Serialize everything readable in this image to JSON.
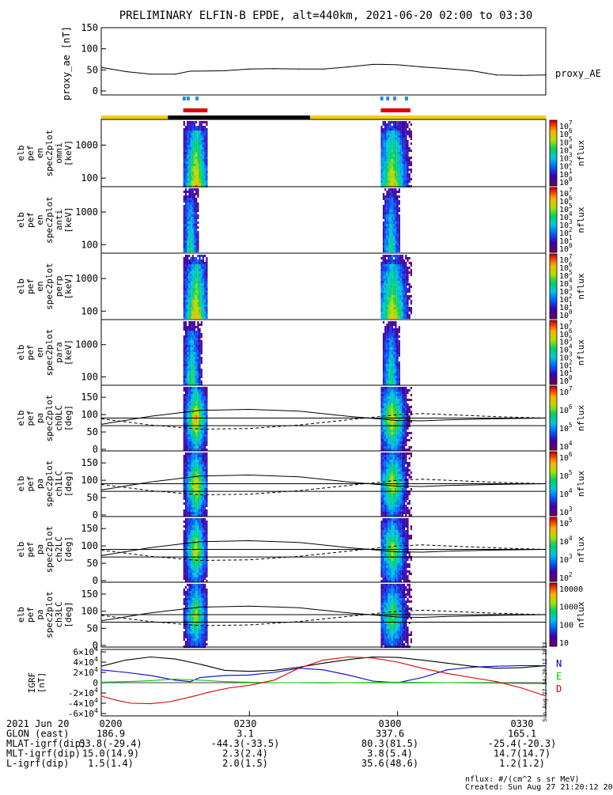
{
  "title": "PRELIMINARY ELFIN-B EPDE, alt=440km, 2021-06-20 02:00 to 03:30",
  "colors": {
    "yellow": "#f5d00a",
    "black": "#000000",
    "red": "#e00000",
    "blue": "#2a8cf0",
    "green": "#00b000",
    "compN": "#0000cc",
    "compE": "#00cc00",
    "compD": "#dd0000"
  },
  "bars": {
    "note": "orbit/science-zone bars above the spectrograms",
    "time_segments": [
      {
        "start_min": 0,
        "end_min": 13.5,
        "color": "yellow"
      },
      {
        "start_min": 13.5,
        "end_min": 42.3,
        "color": "black"
      },
      {
        "start_min": 42.3,
        "end_min": 90,
        "color": "yellow"
      }
    ],
    "science_red": [
      [
        16.6,
        21.5
      ],
      [
        56.6,
        62.6
      ]
    ],
    "science_blue_ticks": [
      16.8,
      17.6,
      19.4,
      56.8,
      58.0,
      59.4,
      61.8
    ]
  },
  "chart_data": [
    {
      "type": "line",
      "panel": "proxy_ae",
      "ylabel": "proxy_ae [nT]",
      "right_label": "proxy_AE",
      "ylim": [
        0,
        150
      ],
      "yticks": [
        "150",
        "100",
        "50",
        "0"
      ],
      "x": [
        0,
        5,
        10,
        15,
        18,
        20,
        25,
        30,
        35,
        40,
        45,
        50,
        55,
        57,
        60,
        65,
        70,
        75,
        78,
        80,
        85,
        90
      ],
      "y": [
        56,
        46,
        40,
        40,
        47,
        47,
        48,
        52,
        53,
        52,
        52,
        57,
        63,
        63,
        62,
        57,
        53,
        48,
        42,
        38,
        37,
        38
      ]
    },
    {
      "type": "heatmap",
      "panel": "spec-omni",
      "ylabel": [
        "elb",
        "pef",
        "en",
        "spec2plot",
        "omni",
        "[keV]"
      ],
      "yticks": [
        "1000",
        "100"
      ],
      "ylog": [
        55,
        6000
      ],
      "colorbar_ticks": [
        "10^7",
        "10^6",
        "10^5",
        "10^4",
        "10^3",
        "10^2",
        "10^1",
        "10^0"
      ],
      "colorbar_label": "nflux",
      "blobs": [
        {
          "t0": 16.6,
          "t1": 21.5,
          "peak_min": 19.0,
          "intensity": 0.9
        },
        {
          "t0": 56.6,
          "t1": 62.6,
          "peak_min": 58.8,
          "intensity": 0.85
        }
      ]
    },
    {
      "type": "heatmap",
      "panel": "spec-anti",
      "ylabel": [
        "elb",
        "pef",
        "en",
        "spec2plot",
        "anti",
        "[keV]"
      ],
      "yticks": [
        "1000",
        "100"
      ],
      "ylog": [
        55,
        6000
      ],
      "colorbar_ticks": [
        "10^7",
        "10^6",
        "10^5",
        "10^4",
        "10^3",
        "10^2",
        "10^1",
        "10^0"
      ],
      "colorbar_label": "nflux",
      "blobs": [
        {
          "t0": 16.6,
          "t1": 19.6,
          "peak_min": 17.9,
          "intensity": 0.6
        },
        {
          "t0": 57.0,
          "t1": 60.5,
          "peak_min": 58.5,
          "intensity": 0.6
        }
      ]
    },
    {
      "type": "heatmap",
      "panel": "spec-perp",
      "ylabel": [
        "elb",
        "pef",
        "en",
        "spec2plot",
        "perp",
        "[keV]"
      ],
      "yticks": [
        "1000",
        "100"
      ],
      "ylog": [
        55,
        6000
      ],
      "colorbar_ticks": [
        "10^7",
        "10^6",
        "10^5",
        "10^4",
        "10^3",
        "10^2",
        "10^1",
        "10^0"
      ],
      "colorbar_label": "nflux",
      "blobs": [
        {
          "t0": 16.6,
          "t1": 21.5,
          "peak_min": 19.0,
          "intensity": 0.9
        },
        {
          "t0": 56.6,
          "t1": 62.6,
          "peak_min": 58.8,
          "intensity": 0.85
        }
      ]
    },
    {
      "type": "heatmap",
      "panel": "spec-para",
      "ylabel": [
        "elb",
        "pef",
        "en",
        "spec2plot",
        "para",
        "[keV]"
      ],
      "yticks": [
        "1000",
        "100"
      ],
      "ylog": [
        55,
        6000
      ],
      "colorbar_ticks": [
        "10^7",
        "10^6",
        "10^5",
        "10^4",
        "10^3",
        "10^2",
        "10^1",
        "10^0"
      ],
      "colorbar_label": "nflux",
      "blobs": [
        {
          "t0": 16.6,
          "t1": 20.2,
          "peak_min": 18.2,
          "intensity": 0.65
        },
        {
          "t0": 57.0,
          "t1": 60.5,
          "peak_min": 58.5,
          "intensity": 0.6
        }
      ]
    },
    {
      "type": "heatmap",
      "panel": "pa-ch0LC",
      "ylabel": [
        "elb",
        "pef",
        "pa",
        "spec2plot",
        "ch0LC",
        "[deg]"
      ],
      "yticks": [
        "150",
        "100",
        "50",
        "0"
      ],
      "ylim": [
        0,
        180
      ],
      "colorbar_ticks": [
        "10^7",
        "10^6",
        "10^5",
        "10^4"
      ],
      "colorbar_label": "nflux",
      "blobs": [
        {
          "t0": 16.6,
          "t1": 21.5,
          "peak_min": 19.0,
          "intensity": 0.9
        },
        {
          "t0": 56.6,
          "t1": 62.6,
          "peak_min": 58.8,
          "intensity": 0.85
        }
      ],
      "losscone_solid": {
        "x": [
          0,
          10,
          20,
          30,
          40,
          50,
          60,
          65,
          70,
          80,
          90
        ],
        "y": [
          72,
          95,
          112,
          115,
          110,
          95,
          83,
          82,
          85,
          88,
          90
        ]
      },
      "losscone_dashed": {
        "x": [
          0,
          10,
          20,
          30,
          40,
          50,
          60,
          65,
          70,
          80,
          90
        ],
        "y": [
          88,
          70,
          58,
          60,
          70,
          85,
          100,
          103,
          100,
          94,
          90
        ]
      },
      "hlines": [
        90,
        68
      ]
    },
    {
      "type": "heatmap",
      "panel": "pa-ch1LC",
      "ylabel": [
        "elb",
        "pef",
        "pa",
        "spec2plot",
        "ch1LC",
        "[deg]"
      ],
      "yticks": [
        "150",
        "100",
        "50",
        "0"
      ],
      "ylim": [
        0,
        180
      ],
      "colorbar_ticks": [
        "10^6",
        "10^5",
        "10^4",
        "10^3"
      ],
      "colorbar_label": "nflux",
      "blobs": [
        {
          "t0": 16.6,
          "t1": 21.5,
          "peak_min": 19.0,
          "intensity": 0.85
        },
        {
          "t0": 56.6,
          "t1": 62.6,
          "peak_min": 58.8,
          "intensity": 0.8
        }
      ],
      "losscone_solid": {
        "x": [
          0,
          10,
          20,
          30,
          40,
          50,
          60,
          65,
          70,
          80,
          90
        ],
        "y": [
          72,
          95,
          112,
          115,
          110,
          95,
          83,
          82,
          85,
          88,
          90
        ]
      },
      "losscone_dashed": {
        "x": [
          0,
          10,
          20,
          30,
          40,
          50,
          60,
          65,
          70,
          80,
          90
        ],
        "y": [
          88,
          70,
          58,
          60,
          70,
          85,
          100,
          103,
          100,
          94,
          90
        ]
      },
      "hlines": [
        90,
        68
      ]
    },
    {
      "type": "heatmap",
      "panel": "pa-ch2LC",
      "ylabel": [
        "elb",
        "pef",
        "pa",
        "spec2plot",
        "ch2LC",
        "[deg]"
      ],
      "yticks": [
        "150",
        "100",
        "50",
        "0"
      ],
      "ylim": [
        0,
        180
      ],
      "colorbar_ticks": [
        "10^5",
        "10^4",
        "10^3",
        "10^2"
      ],
      "colorbar_label": "nflux",
      "blobs": [
        {
          "t0": 16.6,
          "t1": 21.5,
          "peak_min": 19.0,
          "intensity": 0.8
        },
        {
          "t0": 56.6,
          "t1": 62.6,
          "peak_min": 58.8,
          "intensity": 0.75
        }
      ],
      "losscone_solid": {
        "x": [
          0,
          10,
          20,
          30,
          40,
          50,
          60,
          65,
          70,
          80,
          90
        ],
        "y": [
          72,
          95,
          112,
          115,
          110,
          95,
          83,
          82,
          85,
          88,
          90
        ]
      },
      "losscone_dashed": {
        "x": [
          0,
          10,
          20,
          30,
          40,
          50,
          60,
          65,
          70,
          80,
          90
        ],
        "y": [
          88,
          70,
          58,
          60,
          70,
          85,
          100,
          103,
          100,
          94,
          90
        ]
      },
      "hlines": [
        90,
        68
      ]
    },
    {
      "type": "heatmap",
      "panel": "pa-ch3LC",
      "ylabel": [
        "elb",
        "pef",
        "pa",
        "spec2plot",
        "ch3LC",
        "[deg]"
      ],
      "yticks": [
        "150",
        "100",
        "50",
        "0"
      ],
      "ylim": [
        0,
        180
      ],
      "colorbar_ticks": [
        "10000",
        "1000",
        "100",
        "10"
      ],
      "colorbar_label": "nflux",
      "blobs": [
        {
          "t0": 16.6,
          "t1": 21.5,
          "peak_min": 19.0,
          "intensity": 0.75
        },
        {
          "t0": 56.6,
          "t1": 62.6,
          "peak_min": 58.8,
          "intensity": 0.7
        }
      ],
      "losscone_solid": {
        "x": [
          0,
          10,
          20,
          30,
          40,
          50,
          60,
          65,
          70,
          80,
          90
        ],
        "y": [
          72,
          95,
          112,
          115,
          110,
          95,
          83,
          82,
          85,
          88,
          90
        ]
      },
      "losscone_dashed": {
        "x": [
          0,
          10,
          20,
          30,
          40,
          50,
          60,
          65,
          70,
          80,
          90
        ],
        "y": [
          88,
          70,
          58,
          60,
          70,
          85,
          100,
          103,
          100,
          94,
          90
        ]
      },
      "hlines": [
        90,
        68
      ]
    },
    {
      "type": "line",
      "panel": "igrf",
      "ylabel": [
        "IGRF",
        "[nT]"
      ],
      "ylim": [
        -60000,
        60000
      ],
      "yticks": [
        "6×10^4",
        "4×10^4",
        "2×10^4",
        "0",
        "-2×10^4",
        "-4×10^4",
        "-6×10^4"
      ],
      "series": [
        {
          "name": "B total",
          "color": "#000000",
          "x": [
            0,
            5,
            10,
            15,
            20,
            25,
            30,
            35,
            40,
            45,
            50,
            55,
            60,
            65,
            70,
            75,
            80,
            85,
            90
          ],
          "y": [
            32000,
            44000,
            50000,
            46000,
            36000,
            24000,
            22000,
            24000,
            30000,
            38000,
            45000,
            50000,
            49000,
            44000,
            38000,
            32000,
            28000,
            29000,
            33000
          ]
        },
        {
          "name": "N",
          "color": "#0000cc",
          "x": [
            0,
            5,
            10,
            15,
            18,
            20,
            25,
            30,
            35,
            40,
            45,
            50,
            55,
            60,
            65,
            70,
            75,
            80,
            85,
            90
          ],
          "y": [
            25000,
            20000,
            14000,
            5000,
            2000,
            10000,
            14000,
            15000,
            20000,
            28000,
            25000,
            15000,
            3000,
            0,
            10000,
            25000,
            30000,
            32000,
            33000,
            33000
          ]
        },
        {
          "name": "E",
          "color": "#00cc00",
          "x": [
            0,
            5,
            10,
            15,
            20,
            25,
            30,
            35,
            40,
            45,
            50,
            55,
            60,
            65,
            70,
            75,
            80,
            85,
            90
          ],
          "y": [
            1000,
            2000,
            4000,
            7000,
            5000,
            2000,
            1000,
            0,
            0,
            -500,
            0,
            500,
            1000,
            500,
            0,
            -500,
            -1000,
            -1500,
            -2000
          ]
        },
        {
          "name": "D",
          "color": "#dd0000",
          "x": [
            0,
            3,
            6,
            10,
            14,
            18,
            22,
            26,
            30,
            35,
            40,
            45,
            50,
            55,
            60,
            65,
            70,
            75,
            80,
            85,
            90
          ],
          "y": [
            -26000,
            -34000,
            -40000,
            -41000,
            -37000,
            -28000,
            -18000,
            -10000,
            -5000,
            5000,
            28000,
            44000,
            50000,
            48000,
            40000,
            28000,
            18000,
            10000,
            2000,
            -10000,
            -26000
          ]
        }
      ],
      "legend": [
        "N",
        "E",
        "D"
      ],
      "side_note": "Sun Aug 27 14:20:12 2023"
    }
  ],
  "xaxis": {
    "range_min": [
      0,
      90
    ],
    "ticks": [
      {
        "min": 0,
        "label": "0200"
      },
      {
        "min": 30,
        "label": "0230"
      },
      {
        "min": 60,
        "label": "0300"
      },
      {
        "min": 90,
        "label": "0330"
      }
    ]
  },
  "ephemeris": {
    "rows": [
      {
        "label": "2021 Jun 20",
        "values": [
          "0200",
          "0230",
          "0300",
          "0330"
        ]
      },
      {
        "label": "GLON (east)",
        "values": [
          "186.9",
          "3.1",
          "337.6",
          "165.1"
        ]
      },
      {
        "label": "MLAT-igrf(dip)",
        "values": [
          "53.8(-29.4)",
          "-44.3(-33.5)",
          "80.3(81.5)",
          "-25.4(-20.3)"
        ]
      },
      {
        "label": "MLT-igrf(dip)",
        "values": [
          "15.0(14.9)",
          "2.3(2.4)",
          "3.8(5.4)",
          "14.7(14.7)"
        ]
      },
      {
        "label": "L-igrf(dip)",
        "values": [
          "1.5(1.4)",
          "2.0(1.5)",
          "35.6(48.6)",
          "1.2(1.2)"
        ]
      }
    ]
  },
  "footer": {
    "units": "nflux: #/(cm^2 s sr MeV)",
    "created": "Created: Sun Aug 27 21:20:12 2023"
  }
}
